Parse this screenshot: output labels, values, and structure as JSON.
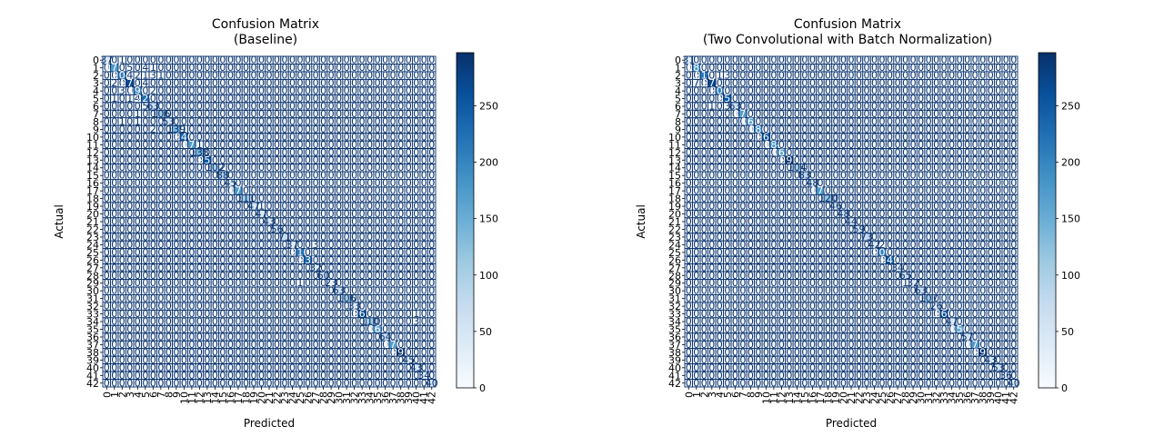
{
  "colors": {
    "cmap_low": "#f7fbff",
    "cmap_high": "#08306b",
    "grid_line": "#08306b"
  },
  "chart_data": [
    {
      "type": "heatmap",
      "title": "Confusion Matrix\n(Baseline)",
      "xlabel": "Predicted",
      "ylabel": "Actual",
      "labels": [
        "0",
        "1",
        "2",
        "3",
        "4",
        "5",
        "6",
        "7",
        "8",
        "9",
        "10",
        "11",
        "12",
        "13",
        "14",
        "15",
        "16",
        "17",
        "18",
        "19",
        "20",
        "21",
        "22",
        "23",
        "24",
        "25",
        "26",
        "27",
        "28",
        "29",
        "30",
        "31",
        "32",
        "33",
        "34",
        "35",
        "36",
        "37",
        "38",
        "39",
        "40",
        "41",
        "42"
      ],
      "colorbar": {
        "vmin": 0,
        "vmax": 297,
        "ticks": [
          0,
          50,
          100,
          150,
          200,
          250
        ]
      },
      "diagonal": [
        37,
        175,
        204,
        271,
        196,
        229,
        63,
        106,
        53,
        139,
        240,
        173,
        138,
        255,
        102,
        88,
        45,
        177,
        111,
        47,
        47,
        43,
        56,
        71,
        37,
        210,
        232,
        32,
        60,
        23,
        63,
        106,
        33,
        267,
        110,
        162,
        64,
        170,
        295,
        45,
        43,
        34,
        40
      ],
      "off_diagonal": [
        {
          "r": 0,
          "c": 2,
          "v": 1
        },
        {
          "r": 1,
          "c": 3,
          "v": 5
        },
        {
          "r": 1,
          "c": 5,
          "v": 4
        },
        {
          "r": 1,
          "c": 6,
          "v": 1
        },
        {
          "r": 2,
          "c": 3,
          "v": 4
        },
        {
          "r": 2,
          "c": 4,
          "v": 2
        },
        {
          "r": 2,
          "c": 5,
          "v": 1
        },
        {
          "r": 2,
          "c": 6,
          "v": 3
        },
        {
          "r": 2,
          "c": 7,
          "v": 1
        },
        {
          "r": 3,
          "c": 1,
          "v": 2
        },
        {
          "r": 3,
          "c": 5,
          "v": 4
        },
        {
          "r": 4,
          "c": 2,
          "v": 3
        },
        {
          "r": 4,
          "c": 6,
          "v": 2
        },
        {
          "r": 5,
          "c": 1,
          "v": 1
        },
        {
          "r": 5,
          "c": 3,
          "v": 1
        },
        {
          "r": 5,
          "c": 4,
          "v": 4
        },
        {
          "r": 6,
          "c": 5,
          "v": 5
        },
        {
          "r": 7,
          "c": 4,
          "v": 1
        },
        {
          "r": 8,
          "c": 2,
          "v": 1
        },
        {
          "r": 8,
          "c": 4,
          "v": 1
        },
        {
          "r": 9,
          "c": 6,
          "v": 2
        },
        {
          "r": 9,
          "c": 10,
          "v": 1
        },
        {
          "r": 11,
          "c": 12,
          "v": 1
        },
        {
          "r": 14,
          "c": 15,
          "v": 2
        },
        {
          "r": 19,
          "c": 20,
          "v": 1
        },
        {
          "r": 24,
          "c": 27,
          "v": 3
        },
        {
          "r": 29,
          "c": 25,
          "v": 1
        },
        {
          "r": 33,
          "c": 40,
          "v": 1
        },
        {
          "r": 34,
          "c": 40,
          "v": 3
        }
      ]
    },
    {
      "type": "heatmap",
      "title": "Confusion Matrix\n(Two Convolutional with Batch Normalization)",
      "xlabel": "Predicted",
      "ylabel": "Actual",
      "labels": [
        "0",
        "1",
        "2",
        "3",
        "4",
        "5",
        "6",
        "7",
        "8",
        "9",
        "10",
        "11",
        "12",
        "13",
        "14",
        "15",
        "16",
        "17",
        "18",
        "19",
        "20",
        "21",
        "22",
        "23",
        "24",
        "25",
        "26",
        "27",
        "28",
        "29",
        "30",
        "31",
        "32",
        "33",
        "34",
        "35",
        "36",
        "37",
        "38",
        "39",
        "40",
        "41",
        "42"
      ],
      "colorbar": {
        "vmin": 0,
        "vmax": 297,
        "ticks": [
          0,
          50,
          100,
          150,
          200,
          250
        ]
      },
      "diagonal": [
        31,
        180,
        219,
        273,
        206,
        253,
        63,
        171,
        161,
        186,
        261,
        184,
        163,
        297,
        104,
        83,
        48,
        176,
        120,
        46,
        48,
        44,
        59,
        73,
        42,
        200,
        249,
        34,
        65,
        32,
        63,
        107,
        26,
        266,
        47,
        150,
        57,
        172,
        295,
        43,
        53,
        36,
        40
      ],
      "off_diagonal": [
        {
          "r": 2,
          "c": 4,
          "v": 1
        },
        {
          "r": 2,
          "c": 5,
          "v": 3
        },
        {
          "r": 3,
          "c": 1,
          "v": 7
        },
        {
          "r": 6,
          "c": 3,
          "v": 1
        },
        {
          "r": 6,
          "c": 5,
          "v": 3
        },
        {
          "r": 24,
          "c": 25,
          "v": 2
        },
        {
          "r": 29,
          "c": 28,
          "v": 1
        }
      ]
    }
  ]
}
